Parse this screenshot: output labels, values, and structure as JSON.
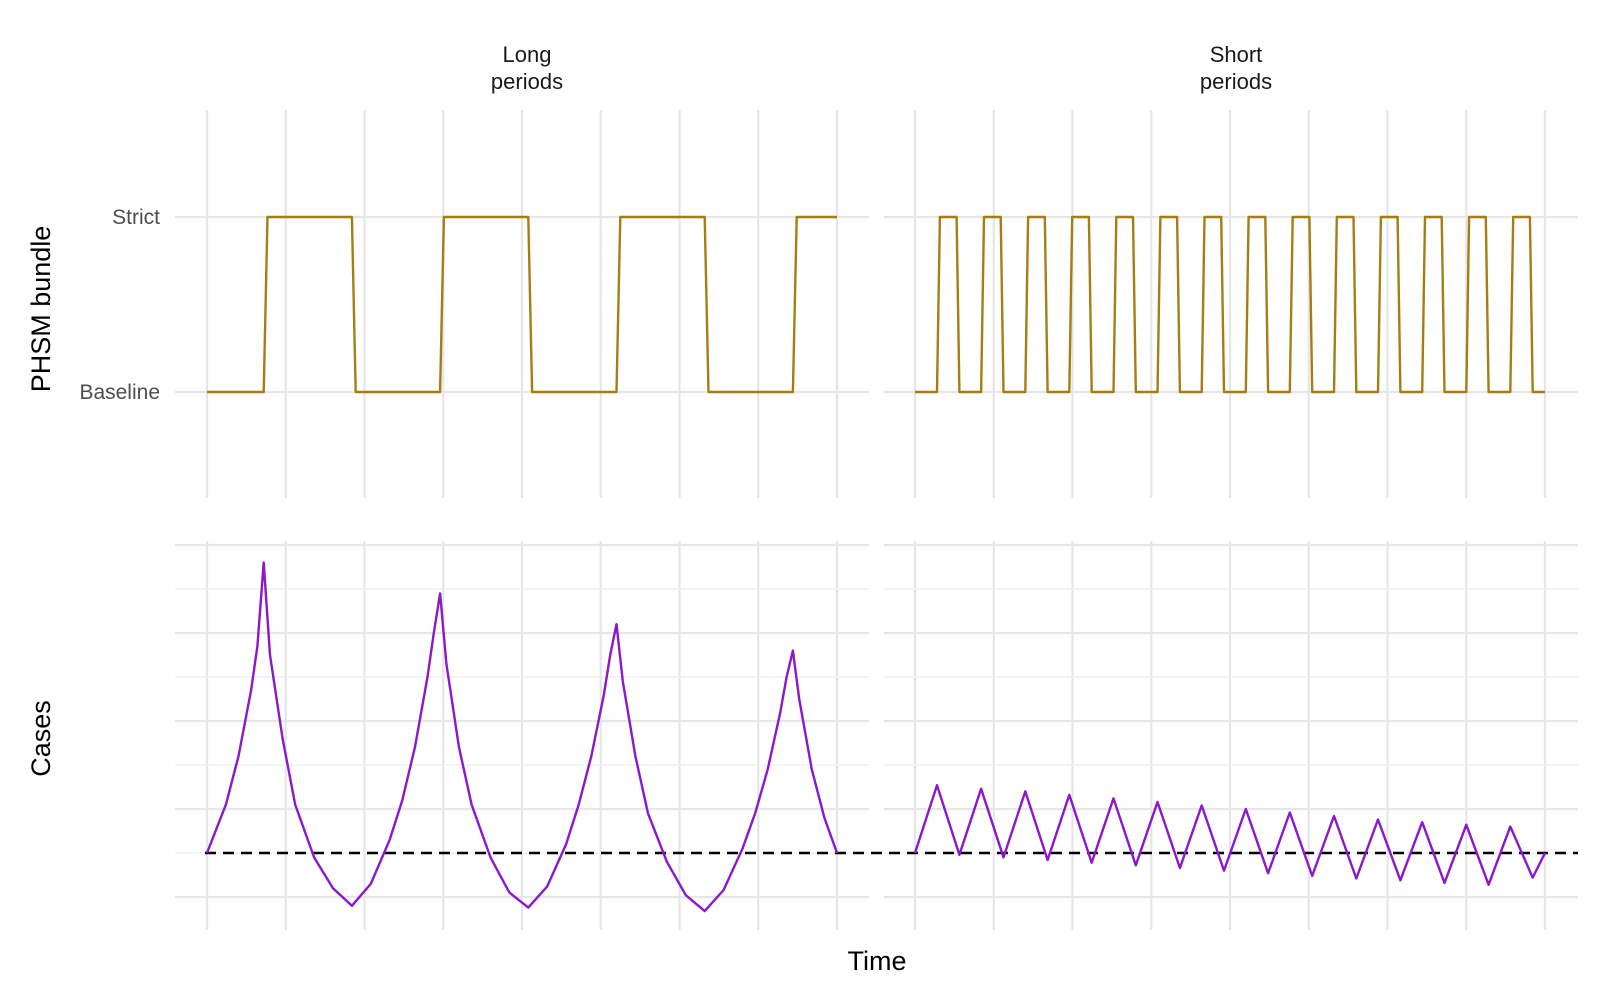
{
  "chart_data": {
    "type": "line",
    "layout": "facet-grid",
    "facets": [
      "Long\nperiods",
      "Short\nperiods"
    ],
    "x_title": "Time",
    "x_range": [
      0,
      100
    ],
    "rows": [
      {
        "y_title": "PHSM bundle",
        "y_kind": "categorical",
        "y_levels": [
          "Baseline",
          "Strict"
        ],
        "y_range": [
          -0.5,
          1.6
        ],
        "color": "#a67c14"
      },
      {
        "y_title": "Cases",
        "y_kind": "continuous",
        "y_range": [
          -0.9,
          3.6
        ],
        "reference_line": 0,
        "color": "#8b18c9"
      }
    ],
    "series": [
      {
        "facet": "Long\nperiods",
        "row": "PHSM bundle",
        "x": [
          0,
          9,
          9.6,
          23,
          23.6,
          37,
          37.6,
          51,
          51.6,
          65,
          65.6,
          79,
          79.6,
          93,
          93.6,
          100
        ],
        "y": [
          0,
          0,
          1,
          1,
          0,
          0,
          1,
          1,
          0,
          0,
          1,
          1,
          0,
          0,
          1,
          1
        ]
      },
      {
        "facet": "Short\nperiods",
        "row": "PHSM bundle",
        "x": [
          0,
          3.5,
          3.95,
          6.6,
          7.05,
          10.5,
          10.95,
          13.6,
          14.05,
          17.5,
          17.95,
          20.6,
          21.05,
          24.5,
          24.95,
          27.6,
          28.05,
          31.5,
          31.95,
          34.6,
          35.05,
          38.5,
          38.95,
          41.6,
          42.05,
          45.5,
          45.95,
          48.6,
          49.05,
          52.5,
          52.95,
          55.6,
          56.05,
          59.5,
          59.95,
          62.6,
          63.05,
          66.5,
          66.95,
          69.6,
          70.05,
          73.5,
          73.95,
          76.6,
          77.05,
          80.5,
          80.95,
          83.6,
          84.05,
          87.5,
          87.95,
          90.6,
          91.05,
          94.5,
          94.95,
          97.6,
          98.05,
          100
        ],
        "y": [
          0,
          0,
          1,
          1,
          0,
          0,
          1,
          1,
          0,
          0,
          1,
          1,
          0,
          0,
          1,
          1,
          0,
          0,
          1,
          1,
          0,
          0,
          1,
          1,
          0,
          0,
          1,
          1,
          0,
          0,
          1,
          1,
          0,
          0,
          1,
          1,
          0,
          0,
          1,
          1,
          0,
          0,
          1,
          1,
          0,
          0,
          1,
          1,
          0,
          0,
          1,
          1,
          0,
          0,
          1,
          1,
          0,
          0
        ]
      },
      {
        "facet": "Long\nperiods",
        "row": "Cases",
        "x": [
          0,
          3,
          5,
          7,
          8,
          9,
          10,
          12,
          14,
          17,
          20,
          23,
          26,
          29,
          31,
          33,
          35,
          36,
          37,
          38,
          40,
          42,
          45,
          48,
          51,
          54,
          57,
          59,
          61,
          63,
          64,
          65,
          66,
          68,
          70,
          73,
          76,
          79,
          82,
          85,
          87,
          89,
          91,
          92,
          93,
          94,
          96,
          98,
          100
        ],
        "y": [
          0,
          0.55,
          1.1,
          1.85,
          2.35,
          3.3,
          2.25,
          1.3,
          0.55,
          -0.05,
          -0.4,
          -0.6,
          -0.35,
          0.15,
          0.6,
          1.2,
          2.0,
          2.5,
          2.95,
          2.15,
          1.2,
          0.55,
          -0.05,
          -0.45,
          -0.62,
          -0.38,
          0.1,
          0.55,
          1.1,
          1.8,
          2.25,
          2.6,
          1.95,
          1.1,
          0.45,
          -0.1,
          -0.48,
          -0.66,
          -0.42,
          0.05,
          0.45,
          0.95,
          1.6,
          2.0,
          2.3,
          1.75,
          0.95,
          0.4,
          0
        ]
      },
      {
        "facet": "Short\nperiods",
        "row": "Cases",
        "x": [
          0,
          3.5,
          7.05,
          10.5,
          14.05,
          17.5,
          21.05,
          24.5,
          28.05,
          31.5,
          35.05,
          38.5,
          42.05,
          45.5,
          49.05,
          52.5,
          56.05,
          59.5,
          63.05,
          66.5,
          70.05,
          73.5,
          77.05,
          80.5,
          84.05,
          87.5,
          91.05,
          94.5,
          98.05,
          100
        ],
        "y": [
          0,
          0.77,
          -0.02,
          0.73,
          -0.05,
          0.7,
          -0.08,
          0.66,
          -0.11,
          0.62,
          -0.14,
          0.58,
          -0.17,
          0.54,
          -0.2,
          0.5,
          -0.23,
          0.46,
          -0.26,
          0.42,
          -0.29,
          0.38,
          -0.31,
          0.35,
          -0.34,
          0.32,
          -0.36,
          0.3,
          -0.28,
          0
        ]
      }
    ]
  }
}
